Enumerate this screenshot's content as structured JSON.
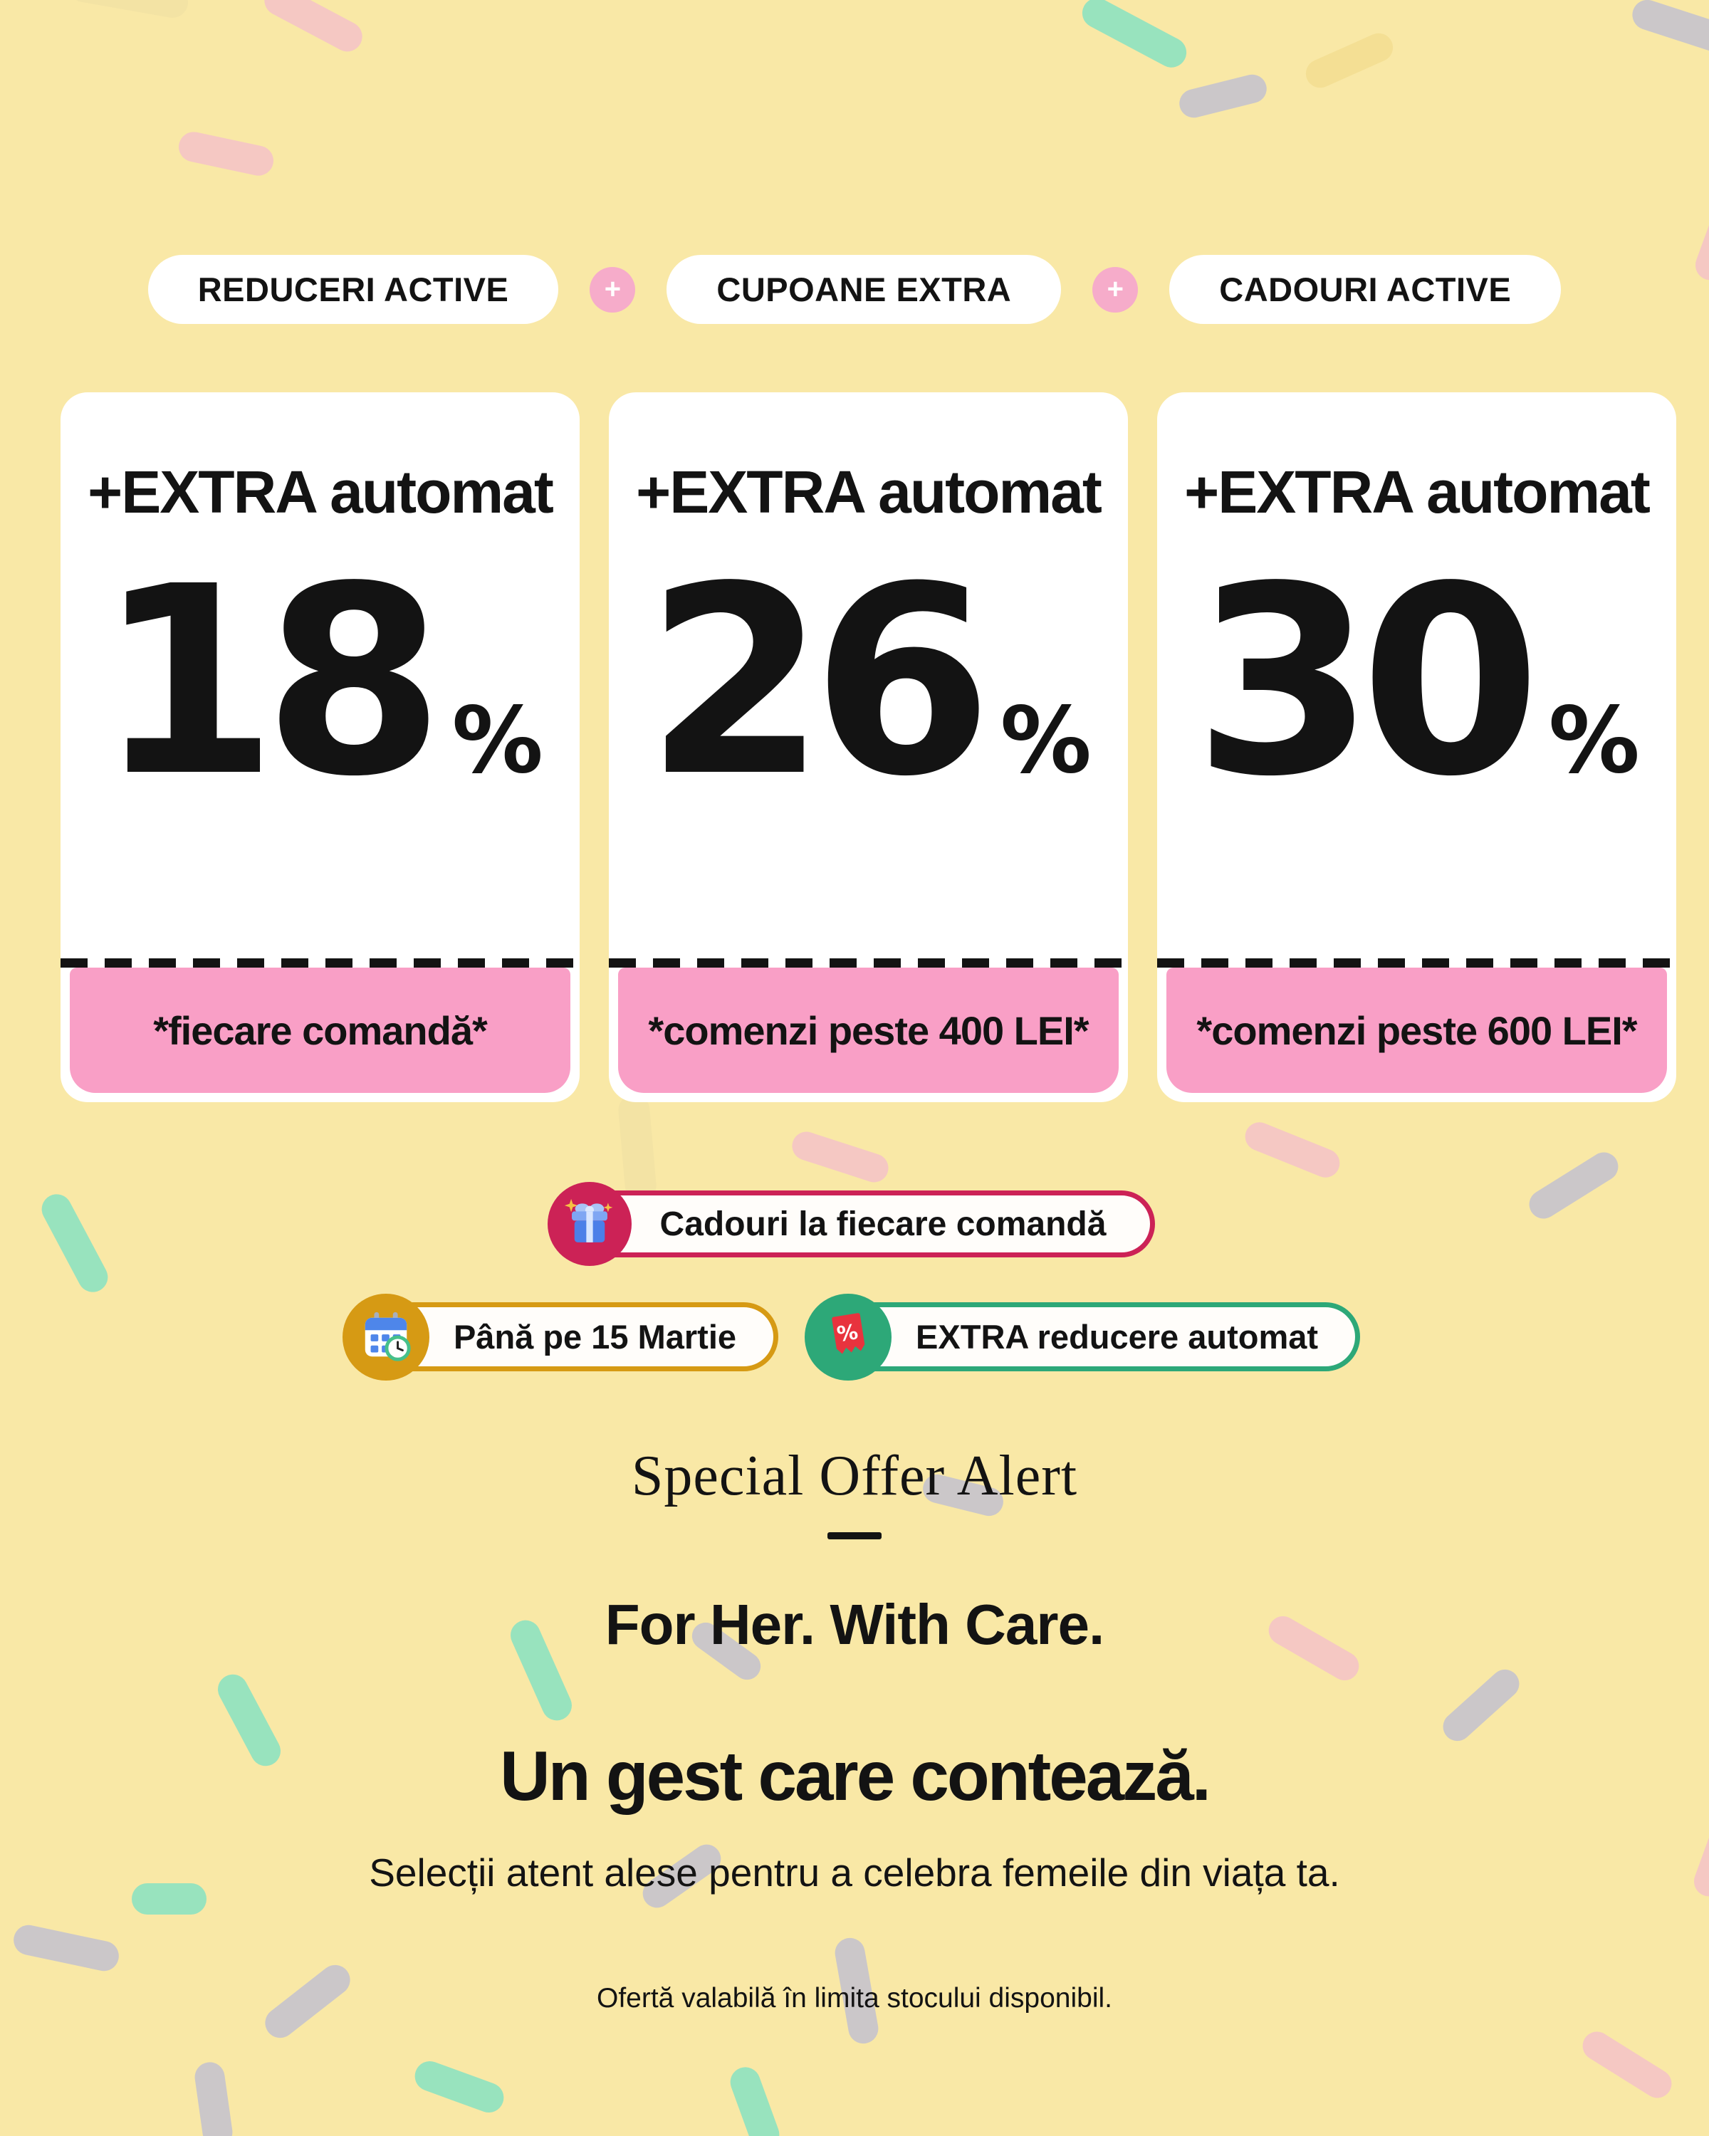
{
  "banner": {
    "badges_row": {
      "separator": "+",
      "items": [
        {
          "label": "REDUCERI ACTIVE"
        },
        {
          "label": "CUPOANE EXTRA"
        },
        {
          "label": "CADOURI ACTIVE"
        }
      ]
    },
    "offer_cards": [
      {
        "header": "+EXTRA automat",
        "value": "18",
        "unit": "%",
        "condition": "*fiecare comandă*"
      },
      {
        "header": "+EXTRA automat",
        "value": "26",
        "unit": "%",
        "condition": "*comenzi peste 400 LEI*"
      },
      {
        "header": "+EXTRA automat",
        "value": "30",
        "unit": "%",
        "condition": "*comenzi peste 600 LEI*"
      }
    ],
    "gift_badge": {
      "icon": "gift-icon",
      "label": "Cadouri la fiecare comandă"
    },
    "info_pills": [
      {
        "icon": "calendar-icon",
        "label": "Până pe 15 Martie"
      },
      {
        "icon": "discount-coupon-icon",
        "icon_glyph": "%",
        "label": "EXTRA reducere automat"
      }
    ],
    "serif_title": "Special Offer Alert",
    "tagline": "For Her. With Care.",
    "headline": "Un gest care contează.",
    "subheadline": "Selecții atent alese pentru a celebra femeile din viața ta.",
    "fineprint": "Ofertă valabilă în limita stocului disponibil."
  },
  "colors": {
    "background": "#F9E8A6",
    "card_bg": "#FFFFFF",
    "text": "#131313",
    "pink_panel": "#F99FC6",
    "pink_plus": "#F6ACCA",
    "crimson": "#CC2256",
    "gold": "#D69A14",
    "green": "#2DA878",
    "confetti_pink": "#F5C8C3",
    "confetti_mint": "#98E3BE",
    "confetti_gray": "#CBC7C9",
    "confetti_yellow": "#F4DF94",
    "confetti_cream": "#F3E3A4"
  }
}
